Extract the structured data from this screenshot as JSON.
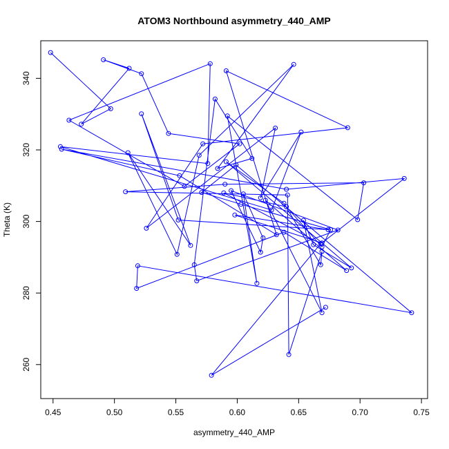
{
  "chart_data": {
    "type": "line",
    "title": "ATOM3 Northbound asymmetry_440_AMP",
    "xlabel": "asymmetry_440_AMP",
    "ylabel": "Theta (K)",
    "xlim": [
      0.44,
      0.755
    ],
    "ylim": [
      250.5,
      350.5
    ],
    "x_ticks": [
      "0.45",
      "0.50",
      "0.55",
      "0.60",
      "0.65",
      "0.70",
      "0.75"
    ],
    "y_ticks": [
      "260",
      "280",
      "300",
      "320",
      "340"
    ],
    "grid": false,
    "series_color": "#0000ff",
    "x": [
      0.448,
      0.497,
      0.473,
      0.512,
      0.491,
      0.522,
      0.544,
      0.602,
      0.557,
      0.463,
      0.578,
      0.576,
      0.456,
      0.628,
      0.652,
      0.619,
      0.631,
      0.526,
      0.572,
      0.69,
      0.591,
      0.632,
      0.553,
      0.457,
      0.64,
      0.736,
      0.669,
      0.598,
      0.674,
      0.552,
      0.522,
      0.562,
      0.511,
      0.551,
      0.569,
      0.646,
      0.584,
      0.612,
      0.582,
      0.565,
      0.567,
      0.682,
      0.595,
      0.619,
      0.621,
      0.605,
      0.616,
      0.592,
      0.698,
      0.703,
      0.59,
      0.509,
      0.641,
      0.642,
      0.669,
      0.668,
      0.638,
      0.591,
      0.693,
      0.662,
      0.654,
      0.669,
      0.623,
      0.689,
      0.638,
      0.518,
      0.519,
      0.742,
      0.599,
      0.571,
      0.603,
      0.676,
      0.669,
      0.64,
      0.589,
      0.668,
      0.579,
      0.672
    ],
    "y": [
      347.2,
      331.5,
      327.2,
      342.8,
      345.2,
      341.3,
      324.6,
      321.7,
      309.8,
      328.3,
      344.1,
      316.2,
      320.9,
      303.2,
      325.0,
      306.6,
      326.1,
      298.1,
      321.7,
      326.2,
      342.1,
      296.3,
      312.8,
      320.2,
      309.0,
      312.0,
      294.0,
      301.8,
      297.7,
      300.4,
      330.1,
      293.3,
      319.2,
      290.8,
      318.5,
      343.9,
      314.8,
      317.6,
      334.2,
      287.9,
      283.4,
      297.6,
      308.6,
      291.4,
      295.4,
      307.7,
      282.7,
      329.5,
      300.5,
      310.8,
      310.4,
      308.3,
      307.4,
      262.8,
      291.6,
      287.9,
      305.1,
      316.7,
      287.0,
      293.5,
      300.3,
      274.5,
      305.9,
      286.3,
      297.0,
      281.3,
      287.6,
      274.5,
      315.8,
      308.1,
      304.8,
      297.7,
      292.9,
      304.1,
      308.0,
      293.8,
      257.0,
      276.0
    ]
  }
}
